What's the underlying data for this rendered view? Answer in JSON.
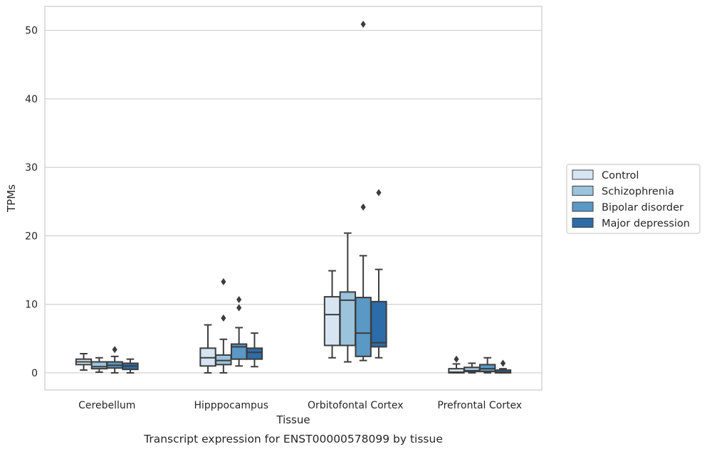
{
  "chart_data": {
    "type": "box",
    "title": "",
    "caption": "Transcript expression for ENST00000578099 by tissue",
    "xlabel": "Tissue",
    "ylabel": "TPMs",
    "ylim": [
      -2.5,
      53.5
    ],
    "yticks": [
      0,
      10,
      20,
      30,
      40,
      50
    ],
    "grid": "horizontal",
    "legend_position": "right-outside",
    "categories": [
      "Cerebellum",
      "Hipppocampus",
      "Orbitofontal Cortex",
      "Prefrontal Cortex"
    ],
    "series": [
      {
        "name": "Control",
        "color": "#d6e5f1",
        "boxes": [
          {
            "whislo": 0.4,
            "q1": 1.2,
            "med": 1.6,
            "q3": 2.0,
            "whishi": 2.8,
            "fliers": []
          },
          {
            "whislo": 0.0,
            "q1": 1.0,
            "med": 2.2,
            "q3": 3.6,
            "whishi": 7.0,
            "fliers": []
          },
          {
            "whislo": 2.2,
            "q1": 4.0,
            "med": 8.5,
            "q3": 11.1,
            "whishi": 14.9,
            "fliers": []
          },
          {
            "whislo": 0.0,
            "q1": 0.0,
            "med": 0.1,
            "q3": 0.6,
            "whishi": 1.3,
            "fliers": [
              2.0
            ]
          }
        ]
      },
      {
        "name": "Schizophrenia",
        "color": "#9bc3db",
        "boxes": [
          {
            "whislo": 0.1,
            "q1": 0.6,
            "med": 0.9,
            "q3": 1.6,
            "whishi": 2.2,
            "fliers": []
          },
          {
            "whislo": 0.0,
            "q1": 1.2,
            "med": 1.8,
            "q3": 2.6,
            "whishi": 4.9,
            "fliers": [
              8.0,
              13.3
            ]
          },
          {
            "whislo": 1.6,
            "q1": 4.0,
            "med": 10.6,
            "q3": 11.8,
            "whishi": 20.4,
            "fliers": []
          },
          {
            "whislo": 0.0,
            "q1": 0.2,
            "med": 0.3,
            "q3": 0.8,
            "whishi": 1.4,
            "fliers": []
          }
        ]
      },
      {
        "name": "Bipolar disorder",
        "color": "#5a98c5",
        "boxes": [
          {
            "whislo": 0.0,
            "q1": 0.7,
            "med": 1.1,
            "q3": 1.6,
            "whishi": 2.4,
            "fliers": [
              3.4
            ]
          },
          {
            "whislo": 1.0,
            "q1": 2.0,
            "med": 3.8,
            "q3": 4.2,
            "whishi": 6.6,
            "fliers": [
              9.5,
              10.7
            ]
          },
          {
            "whislo": 1.8,
            "q1": 2.4,
            "med": 5.8,
            "q3": 11.0,
            "whishi": 17.1,
            "fliers": [
              24.2,
              50.9
            ]
          },
          {
            "whislo": 0.0,
            "q1": 0.2,
            "med": 0.6,
            "q3": 1.2,
            "whishi": 2.2,
            "fliers": []
          }
        ]
      },
      {
        "name": "Major depression",
        "color": "#2c6ca8",
        "boxes": [
          {
            "whislo": 0.0,
            "q1": 0.5,
            "med": 1.0,
            "q3": 1.4,
            "whishi": 2.0,
            "fliers": []
          },
          {
            "whislo": 0.9,
            "q1": 2.0,
            "med": 3.0,
            "q3": 3.6,
            "whishi": 5.8,
            "fliers": []
          },
          {
            "whislo": 2.2,
            "q1": 3.8,
            "med": 4.4,
            "q3": 10.4,
            "whishi": 15.1,
            "fliers": [
              26.3
            ]
          },
          {
            "whislo": 0.0,
            "q1": 0.0,
            "med": 0.1,
            "q3": 0.4,
            "whishi": 0.6,
            "fliers": [
              1.4
            ]
          }
        ]
      }
    ]
  }
}
